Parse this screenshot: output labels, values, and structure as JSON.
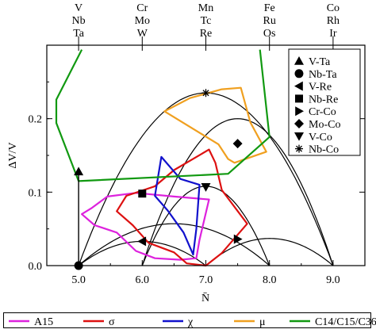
{
  "chart_data": {
    "type": "line",
    "xlabel": "N̄",
    "ylabel": "ΔV/V",
    "xlim": [
      4.5,
      9.5
    ],
    "ylim": [
      0,
      0.3
    ],
    "x_ticks": [
      5.0,
      6.0,
      7.0,
      8.0,
      9.0
    ],
    "x_tick_labels": [
      "5.0",
      "6.0",
      "7.0",
      "8.0",
      "9.0"
    ],
    "y_ticks": [
      0,
      0.1,
      0.2
    ],
    "y_tick_labels": [
      "0.0",
      "0.1",
      "0.2"
    ],
    "top_ticks": [
      5,
      6,
      7,
      8,
      9
    ],
    "top_labels": [
      [
        "V",
        "Nb",
        "Ta"
      ],
      [
        "Cr",
        "Mo",
        "W"
      ],
      [
        "Mn",
        "Tc",
        "Re"
      ],
      [
        "Fe",
        "Ru",
        "Os"
      ],
      [
        "Co",
        "Rh",
        "Ir"
      ]
    ],
    "arcs": [
      {
        "x0": 5,
        "x1": 7,
        "peak": 0.033
      },
      {
        "x0": 5,
        "x1": 8,
        "peak": 0.057
      },
      {
        "x0": 5,
        "x1": 9,
        "peak": 0.235
      },
      {
        "x0": 6,
        "x1": 8,
        "peak": 0.108
      },
      {
        "x0": 6,
        "x1": 9,
        "peak": 0.2
      },
      {
        "x0": 7,
        "x1": 9,
        "peak": 0.037
      }
    ],
    "pairs": [
      {
        "name": "V-Ta",
        "marker": "triangle-up",
        "x": 5.0,
        "y": 0.128
      },
      {
        "name": "Nb-Ta",
        "marker": "circle",
        "x": 5.0,
        "y": 0.0
      },
      {
        "name": "V-Re",
        "marker": "triangle-left",
        "x": 6.0,
        "y": 0.033
      },
      {
        "name": "Nb-Re",
        "marker": "square",
        "x": 6.0,
        "y": 0.098
      },
      {
        "name": "Cr-Co",
        "marker": "triangle-right",
        "x": 7.5,
        "y": 0.036
      },
      {
        "name": "Mo-Co",
        "marker": "diamond",
        "x": 7.5,
        "y": 0.166
      },
      {
        "name": "V-Co",
        "marker": "triangle-down",
        "x": 7.0,
        "y": 0.107
      },
      {
        "name": "Nb-Co",
        "marker": "asterisk",
        "x": 7.0,
        "y": 0.235
      }
    ],
    "series": [
      {
        "name": "A15",
        "color": "#dd22dd",
        "closed": true,
        "points": [
          [
            5.05,
            0.07
          ],
          [
            5.2,
            0.078
          ],
          [
            5.45,
            0.094
          ],
          [
            5.9,
            0.099
          ],
          [
            6.5,
            0.094
          ],
          [
            7.05,
            0.09
          ],
          [
            6.9,
            0.035
          ],
          [
            6.85,
            0.01
          ],
          [
            6.6,
            0.008
          ],
          [
            6.2,
            0.01
          ],
          [
            5.9,
            0.02
          ],
          [
            5.6,
            0.045
          ],
          [
            5.25,
            0.055
          ]
        ]
      },
      {
        "name": "σ",
        "color": "#dd1111",
        "closed": true,
        "points": [
          [
            5.6,
            0.074
          ],
          [
            5.75,
            0.095
          ],
          [
            6.2,
            0.108
          ],
          [
            6.5,
            0.13
          ],
          [
            7.05,
            0.158
          ],
          [
            7.15,
            0.14
          ],
          [
            7.25,
            0.103
          ],
          [
            7.65,
            0.057
          ],
          [
            7.25,
            0.017
          ],
          [
            7.0,
            0.0
          ],
          [
            6.7,
            0.003
          ],
          [
            6.5,
            0.018
          ],
          [
            6.1,
            0.031
          ],
          [
            5.85,
            0.055
          ]
        ]
      },
      {
        "name": "χ",
        "color": "#1111cc",
        "closed": true,
        "points": [
          [
            6.3,
            0.148
          ],
          [
            6.6,
            0.118
          ],
          [
            6.9,
            0.11
          ],
          [
            6.85,
            0.05
          ],
          [
            6.8,
            0.015
          ],
          [
            6.65,
            0.045
          ],
          [
            6.4,
            0.075
          ],
          [
            6.2,
            0.095
          ]
        ]
      },
      {
        "name": "μ",
        "color": "#f0a020",
        "closed": true,
        "points": [
          [
            6.35,
            0.21
          ],
          [
            6.75,
            0.228
          ],
          [
            7.25,
            0.24
          ],
          [
            7.55,
            0.242
          ],
          [
            7.7,
            0.195
          ],
          [
            7.95,
            0.155
          ],
          [
            7.45,
            0.14
          ],
          [
            7.35,
            0.145
          ],
          [
            7.2,
            0.165
          ]
        ]
      },
      {
        "name": "C14/C15/C36",
        "color": "#119911",
        "closed": false,
        "points": [
          [
            5.05,
            0.294
          ],
          [
            4.65,
            0.226
          ],
          [
            4.65,
            0.194
          ],
          [
            5.0,
            0.115
          ],
          [
            7.35,
            0.125
          ],
          [
            8.0,
            0.175
          ],
          [
            7.85,
            0.294
          ]
        ]
      }
    ]
  }
}
